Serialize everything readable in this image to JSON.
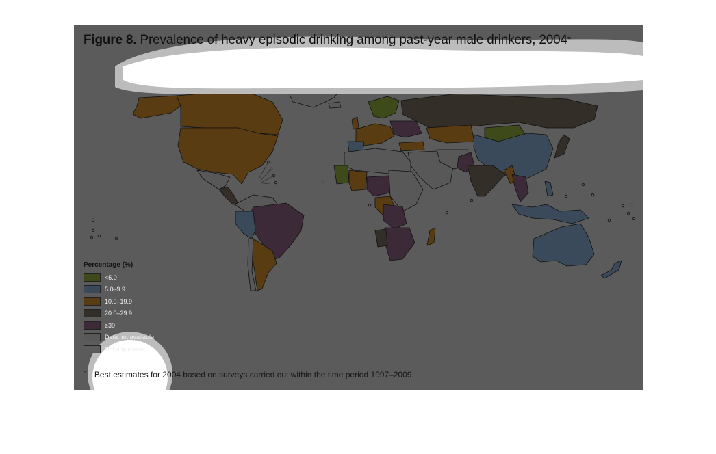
{
  "figure": {
    "label": "Figure 8.",
    "title": "Prevalence of heavy episodic drinking among past-year male drinkers, 2004",
    "title_sup": "a"
  },
  "legend": {
    "title": "Percentage (%)",
    "items": [
      {
        "label": "<5.0",
        "color": "#3e4a1a"
      },
      {
        "label": "5.0–9.9",
        "color": "#3a4a5a"
      },
      {
        "label": "10.0–19.9",
        "color": "#5a3c12"
      },
      {
        "label": "20.0–29.9",
        "color": "#332e28"
      },
      {
        "label": "≥30",
        "color": "#3c2a38"
      },
      {
        "label": "Data not available",
        "color": "#585858"
      },
      {
        "label": "Not applicable",
        "color": "#5b5b5b"
      }
    ]
  },
  "footnote": {
    "mark": "a",
    "text": "Best estimates for 2004 based on surveys carried out within the time period 1997–2009."
  }
}
